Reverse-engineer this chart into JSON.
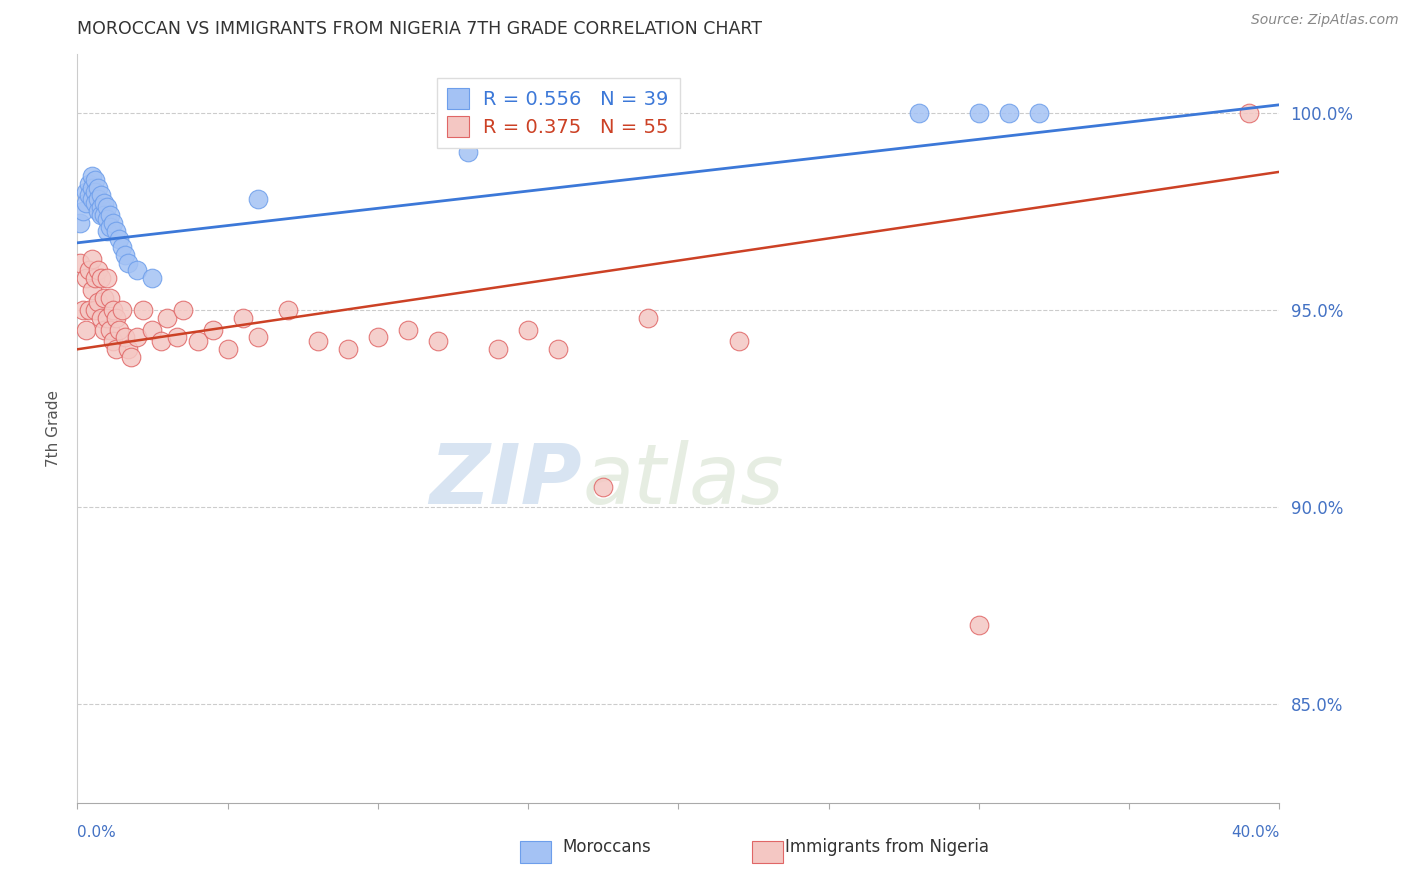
{
  "title": "MOROCCAN VS IMMIGRANTS FROM NIGERIA 7TH GRADE CORRELATION CHART",
  "source": "Source: ZipAtlas.com",
  "ylabel": "7th Grade",
  "ytick_labels": [
    "100.0%",
    "95.0%",
    "90.0%",
    "85.0%"
  ],
  "ytick_values": [
    1.0,
    0.95,
    0.9,
    0.85
  ],
  "xmin": 0.0,
  "xmax": 0.4,
  "ymin": 0.825,
  "ymax": 1.015,
  "blue_R": 0.556,
  "blue_N": 39,
  "pink_R": 0.375,
  "pink_N": 55,
  "blue_color": "#a4c2f4",
  "pink_color": "#f4c7c3",
  "blue_edge_color": "#6d9eeb",
  "pink_edge_color": "#e06666",
  "blue_line_color": "#3c78d8",
  "pink_line_color": "#cc4125",
  "legend_text_blue": "R = 0.556   N = 39",
  "legend_text_pink": "R = 0.375   N = 55",
  "blue_x": [
    0.001,
    0.002,
    0.003,
    0.003,
    0.004,
    0.004,
    0.005,
    0.005,
    0.005,
    0.006,
    0.006,
    0.006,
    0.007,
    0.007,
    0.007,
    0.008,
    0.008,
    0.008,
    0.009,
    0.009,
    0.01,
    0.01,
    0.01,
    0.011,
    0.011,
    0.012,
    0.013,
    0.014,
    0.015,
    0.016,
    0.017,
    0.02,
    0.025,
    0.06,
    0.13,
    0.28,
    0.3,
    0.31,
    0.32
  ],
  "blue_y": [
    0.972,
    0.975,
    0.98,
    0.977,
    0.982,
    0.979,
    0.984,
    0.981,
    0.978,
    0.983,
    0.98,
    0.977,
    0.981,
    0.978,
    0.975,
    0.979,
    0.976,
    0.974,
    0.977,
    0.974,
    0.976,
    0.973,
    0.97,
    0.974,
    0.971,
    0.972,
    0.97,
    0.968,
    0.966,
    0.964,
    0.962,
    0.96,
    0.958,
    0.978,
    0.99,
    1.0,
    1.0,
    1.0,
    1.0
  ],
  "pink_x": [
    0.001,
    0.002,
    0.003,
    0.003,
    0.004,
    0.004,
    0.005,
    0.005,
    0.006,
    0.006,
    0.007,
    0.007,
    0.008,
    0.008,
    0.009,
    0.009,
    0.01,
    0.01,
    0.011,
    0.011,
    0.012,
    0.012,
    0.013,
    0.013,
    0.014,
    0.015,
    0.016,
    0.017,
    0.018,
    0.02,
    0.022,
    0.025,
    0.028,
    0.03,
    0.033,
    0.035,
    0.04,
    0.045,
    0.05,
    0.055,
    0.06,
    0.07,
    0.08,
    0.09,
    0.1,
    0.11,
    0.12,
    0.14,
    0.15,
    0.16,
    0.175,
    0.19,
    0.22,
    0.3,
    0.39
  ],
  "pink_y": [
    0.962,
    0.95,
    0.958,
    0.945,
    0.96,
    0.95,
    0.963,
    0.955,
    0.958,
    0.95,
    0.96,
    0.952,
    0.958,
    0.948,
    0.953,
    0.945,
    0.958,
    0.948,
    0.953,
    0.945,
    0.95,
    0.942,
    0.948,
    0.94,
    0.945,
    0.95,
    0.943,
    0.94,
    0.938,
    0.943,
    0.95,
    0.945,
    0.942,
    0.948,
    0.943,
    0.95,
    0.942,
    0.945,
    0.94,
    0.948,
    0.943,
    0.95,
    0.942,
    0.94,
    0.943,
    0.945,
    0.942,
    0.94,
    0.945,
    0.94,
    0.905,
    0.948,
    0.942,
    0.87,
    1.0
  ],
  "watermark_zip": "ZIP",
  "watermark_atlas": "atlas"
}
